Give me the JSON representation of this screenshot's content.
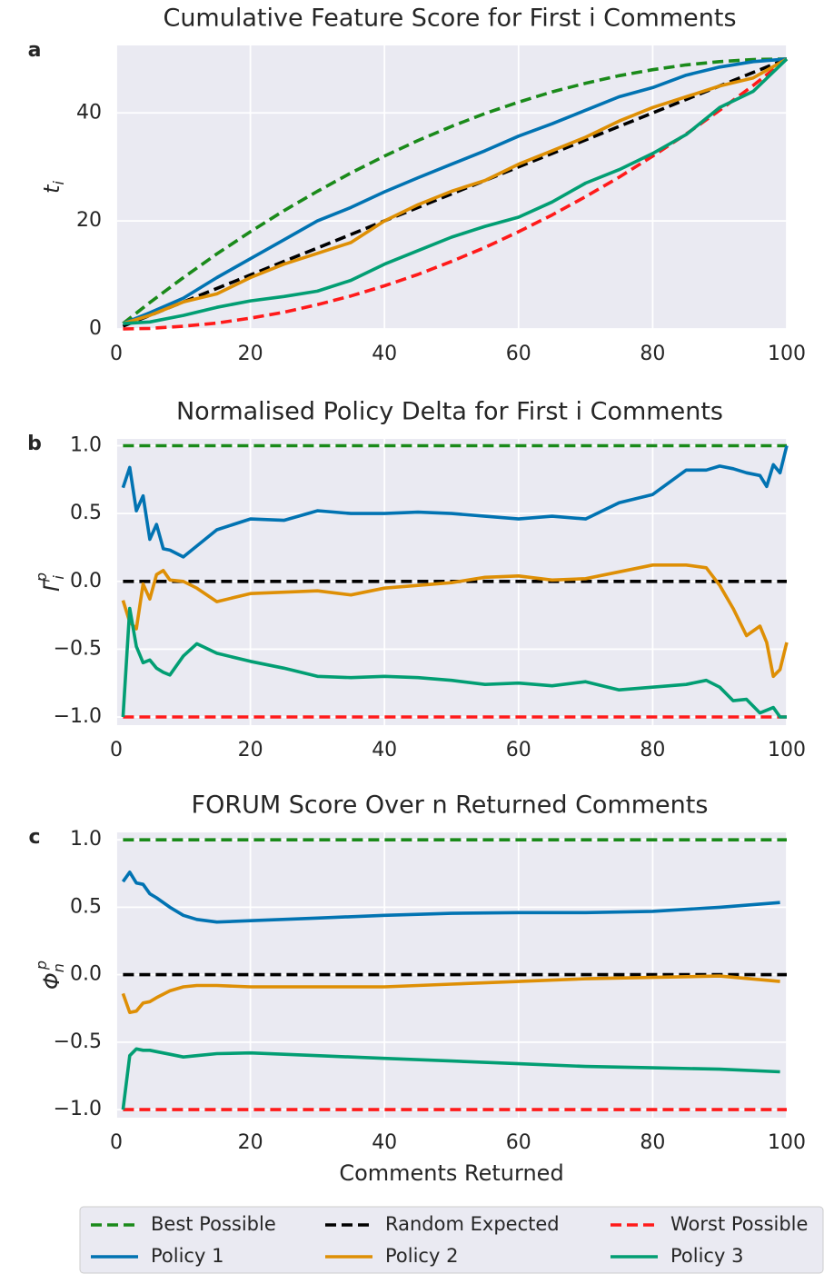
{
  "chart_data": [
    {
      "type": "line",
      "panel": "a",
      "title": "Cumulative Feature Score for First i Comments",
      "ylabel": {
        "base": "t",
        "sub": "i"
      },
      "xlim": [
        0,
        100
      ],
      "xticks": [
        0,
        20,
        40,
        60,
        80,
        100
      ],
      "ylim": [
        0,
        52.5
      ],
      "yticks": [
        0,
        20,
        40
      ],
      "grid": true,
      "x": [
        1,
        5,
        10,
        15,
        20,
        25,
        30,
        35,
        40,
        45,
        50,
        55,
        60,
        65,
        70,
        75,
        80,
        85,
        90,
        95,
        100
      ],
      "series": [
        {
          "name": "Best Possible",
          "color": "#1a8a1a",
          "dashed": true,
          "values": [
            1.0,
            4.9,
            9.5,
            13.9,
            18,
            21.9,
            25.5,
            28.9,
            32,
            34.9,
            37.5,
            39.9,
            42,
            43.9,
            45.5,
            46.9,
            48,
            48.9,
            49.5,
            49.9,
            50
          ]
        },
        {
          "name": "Random Expected",
          "color": "#000000",
          "dashed": true,
          "values": [
            0.5,
            2.5,
            5,
            7.5,
            10,
            12.5,
            15,
            17.5,
            20,
            22.5,
            25,
            27.5,
            30,
            32.5,
            35,
            37.5,
            40,
            42.5,
            45,
            47.5,
            50
          ]
        },
        {
          "name": "Worst Possible",
          "color": "#ff1a1a",
          "dashed": true,
          "values": [
            0.0,
            0.1,
            0.5,
            1.1,
            2,
            3.1,
            4.5,
            6.1,
            8,
            10.1,
            12.5,
            15.1,
            18,
            21.1,
            24.5,
            28.1,
            32,
            36.1,
            40.5,
            45.1,
            50
          ]
        },
        {
          "name": "Policy 1",
          "color": "#0173b2",
          "values": [
            1,
            3,
            5.7,
            9.5,
            13,
            16.5,
            20,
            22.5,
            25.4,
            28,
            30.5,
            33,
            35.7,
            38,
            40.5,
            43,
            44.7,
            47,
            48.5,
            49.5,
            50
          ]
        },
        {
          "name": "Policy 2",
          "color": "#de8f05",
          "values": [
            1,
            2.5,
            5,
            6.5,
            9.5,
            12,
            14,
            16,
            20,
            23,
            25.5,
            27.5,
            30.5,
            33,
            35.5,
            38.5,
            41,
            43,
            45,
            46.5,
            50
          ]
        },
        {
          "name": "Policy 3",
          "color": "#029e73",
          "values": [
            1,
            1.3,
            2.5,
            4,
            5.2,
            6,
            7,
            9,
            12,
            14.5,
            17,
            19,
            20.7,
            23.5,
            27,
            29.5,
            32.5,
            36,
            41,
            44,
            50
          ]
        }
      ]
    },
    {
      "type": "line",
      "panel": "b",
      "title": "Normalised Policy Delta for First i Comments",
      "ylabel": {
        "base": "Γ",
        "sub": "i",
        "sup": "p"
      },
      "xlim": [
        0,
        100
      ],
      "xticks": [
        0,
        20,
        40,
        60,
        80,
        100
      ],
      "ylim": [
        -1.06,
        1.05
      ],
      "yticks": [
        {
          "value": 1,
          "label": "1.0"
        },
        {
          "value": 0.5,
          "label": "0.5"
        },
        {
          "value": 0,
          "label": "0.0"
        },
        {
          "value": -0.5,
          "label": "−0.5"
        },
        {
          "value": -1,
          "label": "−1.0"
        }
      ],
      "grid": true,
      "x": [
        1,
        2,
        3,
        4,
        5,
        6,
        7,
        8,
        10,
        12,
        15,
        20,
        25,
        30,
        35,
        40,
        45,
        50,
        55,
        60,
        65,
        70,
        75,
        80,
        85,
        88,
        90,
        92,
        94,
        96,
        97,
        98,
        99,
        100
      ],
      "series": [
        {
          "name": "Best Possible",
          "color": "#1a8a1a",
          "dashed": true,
          "x": [
            1,
            100
          ],
          "values": [
            1,
            1
          ]
        },
        {
          "name": "Random Expected",
          "color": "#000000",
          "dashed": true,
          "x": [
            1,
            100
          ],
          "values": [
            0,
            0
          ]
        },
        {
          "name": "Worst Possible",
          "color": "#ff1a1a",
          "dashed": true,
          "x": [
            1,
            100
          ],
          "values": [
            -1,
            -1
          ]
        },
        {
          "name": "Policy 1",
          "color": "#0173b2",
          "values": [
            0.69,
            0.84,
            0.52,
            0.63,
            0.31,
            0.42,
            0.24,
            0.23,
            0.18,
            0.26,
            0.38,
            0.46,
            0.45,
            0.52,
            0.5,
            0.5,
            0.51,
            0.5,
            0.48,
            0.46,
            0.48,
            0.46,
            0.58,
            0.64,
            0.82,
            0.82,
            0.85,
            0.83,
            0.8,
            0.78,
            0.7,
            0.86,
            0.8,
            1.0
          ]
        },
        {
          "name": "Policy 2",
          "color": "#de8f05",
          "values": [
            -0.14,
            -0.3,
            -0.35,
            -0.02,
            -0.13,
            0.05,
            0.08,
            0.01,
            0.0,
            -0.05,
            -0.15,
            -0.09,
            -0.08,
            -0.07,
            -0.1,
            -0.05,
            -0.03,
            -0.01,
            0.03,
            0.04,
            0.01,
            0.02,
            0.07,
            0.12,
            0.12,
            0.1,
            -0.03,
            -0.2,
            -0.4,
            -0.33,
            -0.45,
            -0.7,
            -0.65,
            -0.45
          ]
        },
        {
          "name": "Policy 3",
          "color": "#029e73",
          "values": [
            -1.0,
            -0.2,
            -0.48,
            -0.6,
            -0.58,
            -0.64,
            -0.67,
            -0.69,
            -0.55,
            -0.46,
            -0.53,
            -0.59,
            -0.64,
            -0.7,
            -0.71,
            -0.7,
            -0.71,
            -0.73,
            -0.76,
            -0.75,
            -0.77,
            -0.74,
            -0.8,
            -0.78,
            -0.76,
            -0.73,
            -0.78,
            -0.88,
            -0.87,
            -0.97,
            -0.95,
            -0.93,
            -1.0,
            -1.0
          ]
        }
      ]
    },
    {
      "type": "line",
      "panel": "c",
      "title": "FORUM Score Over n Returned Comments",
      "ylabel": {
        "base": "Φ",
        "sub": "n",
        "sup": "p"
      },
      "xlabel": "Comments Returned",
      "xlim": [
        0,
        100
      ],
      "xticks": [
        0,
        20,
        40,
        60,
        80,
        100
      ],
      "ylim": [
        -1.06,
        1.055
      ],
      "yticks": [
        {
          "value": 1,
          "label": "1.0"
        },
        {
          "value": 0.5,
          "label": "0.5"
        },
        {
          "value": 0,
          "label": "0.0"
        },
        {
          "value": -0.5,
          "label": "−0.5"
        },
        {
          "value": -1,
          "label": "−1.0"
        }
      ],
      "grid": true,
      "x": [
        1,
        2,
        3,
        4,
        5,
        6,
        8,
        10,
        12,
        15,
        20,
        30,
        40,
        50,
        60,
        70,
        80,
        90,
        99
      ],
      "series": [
        {
          "name": "Best Possible",
          "color": "#1a8a1a",
          "dashed": true,
          "x": [
            1,
            100
          ],
          "values": [
            1,
            1
          ]
        },
        {
          "name": "Random Expected",
          "color": "#000000",
          "dashed": true,
          "x": [
            1,
            100
          ],
          "values": [
            0,
            0
          ]
        },
        {
          "name": "Worst Possible",
          "color": "#ff1a1a",
          "dashed": true,
          "x": [
            1,
            100
          ],
          "values": [
            -1,
            -1
          ]
        },
        {
          "name": "Policy 1",
          "color": "#0173b2",
          "values": [
            0.69,
            0.76,
            0.68,
            0.67,
            0.6,
            0.57,
            0.5,
            0.44,
            0.41,
            0.39,
            0.4,
            0.42,
            0.44,
            0.455,
            0.46,
            0.46,
            0.47,
            0.5,
            0.535
          ]
        },
        {
          "name": "Policy 2",
          "color": "#de8f05",
          "values": [
            -0.14,
            -0.28,
            -0.27,
            -0.21,
            -0.2,
            -0.17,
            -0.12,
            -0.09,
            -0.08,
            -0.08,
            -0.09,
            -0.09,
            -0.09,
            -0.07,
            -0.05,
            -0.03,
            -0.02,
            -0.01,
            -0.05
          ]
        },
        {
          "name": "Policy 3",
          "color": "#029e73",
          "values": [
            -1.0,
            -0.6,
            -0.55,
            -0.56,
            -0.56,
            -0.57,
            -0.59,
            -0.61,
            -0.6,
            -0.585,
            -0.58,
            -0.6,
            -0.62,
            -0.64,
            -0.66,
            -0.68,
            -0.69,
            -0.7,
            -0.72
          ]
        }
      ]
    }
  ]
}
